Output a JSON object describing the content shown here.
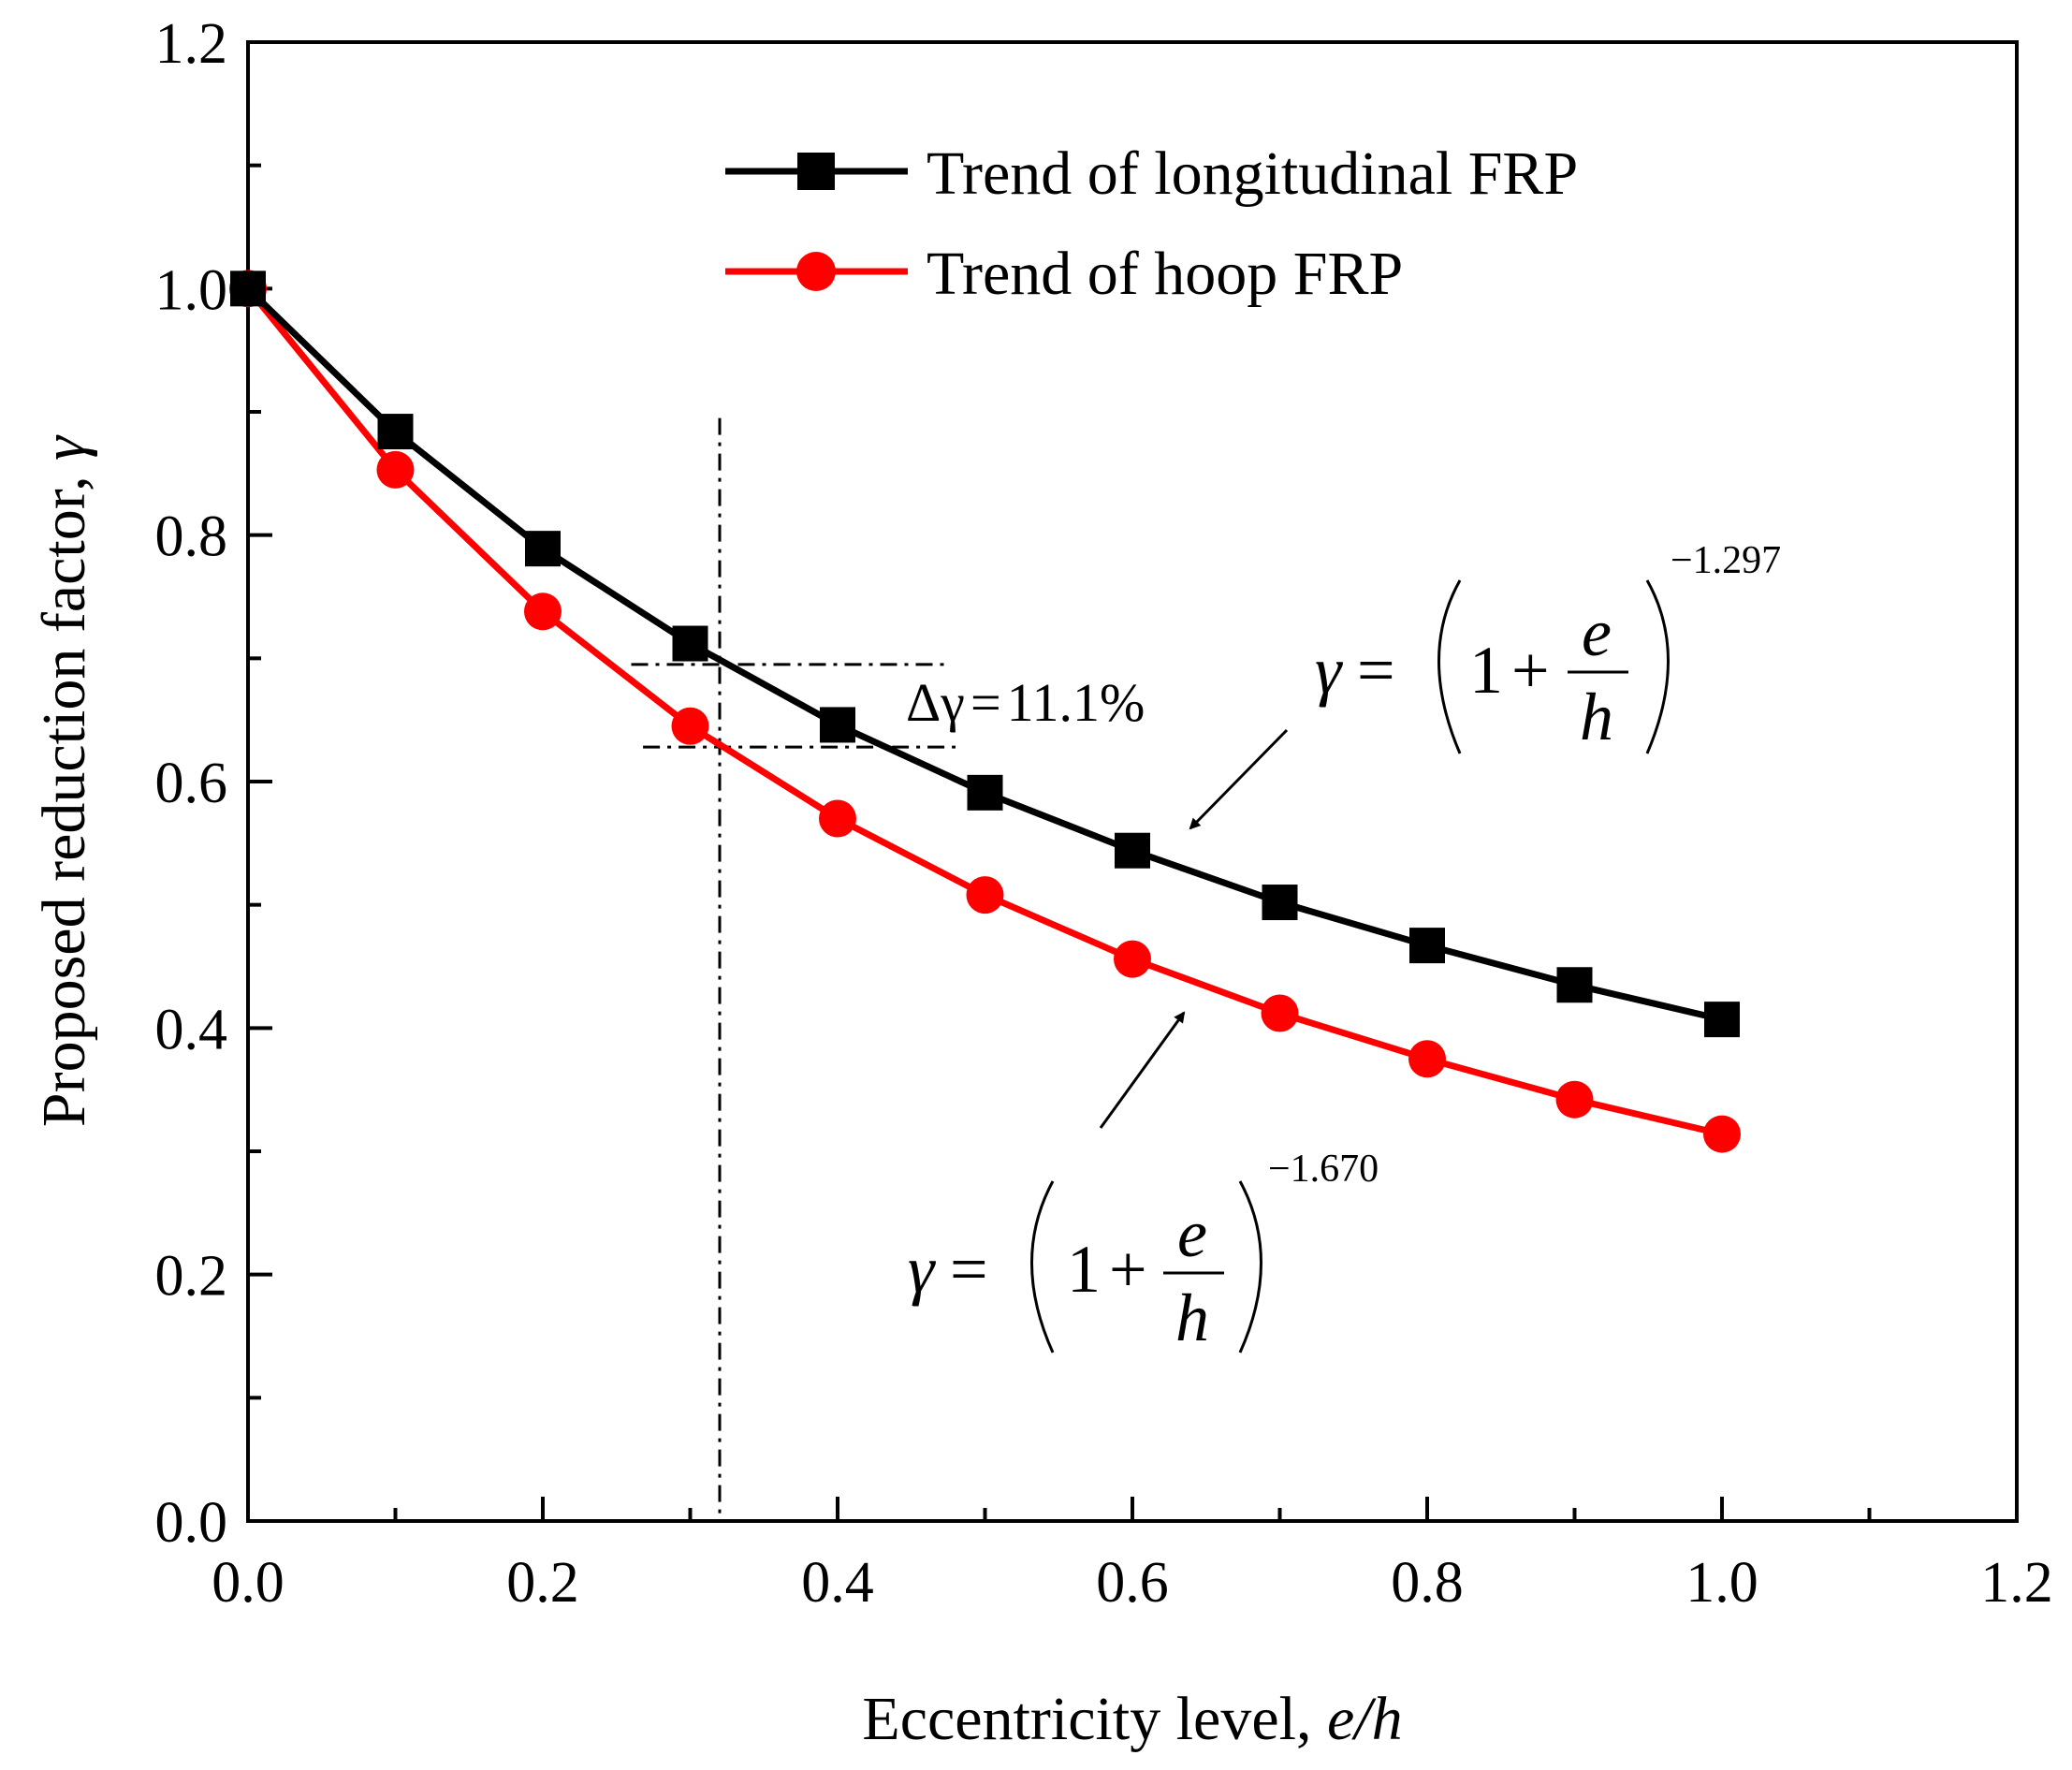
{
  "chart_data": {
    "type": "line",
    "xlabel": "Eccentricity level, ",
    "xlabel_italic": "e/h",
    "ylabel": "Proposed reduction factor, ",
    "ylabel_italic": "γ",
    "xlim": [
      0.0,
      1.2
    ],
    "ylim": [
      0.0,
      1.2
    ],
    "xticks": [
      "0.0",
      "0.2",
      "0.4",
      "0.6",
      "0.8",
      "1.0",
      "1.2"
    ],
    "yticks": [
      "0.0",
      "0.2",
      "0.4",
      "0.6",
      "0.8",
      "1.0",
      "1.2"
    ],
    "x": [
      0.0,
      0.1,
      0.2,
      0.3,
      0.4,
      0.5,
      0.6,
      0.7,
      0.8,
      0.9,
      1.0
    ],
    "series": [
      {
        "name": "Trend of longitudinal FRP",
        "color": "#000000",
        "marker": "square",
        "values": [
          1.0,
          0.884,
          0.789,
          0.712,
          0.646,
          0.591,
          0.544,
          0.502,
          0.467,
          0.435,
          0.407
        ]
      },
      {
        "name": "Trend of hoop FRP",
        "color": "#ff0000",
        "marker": "circle",
        "values": [
          1.0,
          0.853,
          0.738,
          0.645,
          0.57,
          0.508,
          0.456,
          0.412,
          0.375,
          0.342,
          0.314
        ]
      }
    ],
    "reference_line": {
      "x": 0.32
    },
    "delta_lines": [
      0.695,
      0.628
    ],
    "annotations": {
      "delta": {
        "symbol": "Δγ",
        "equals": "=",
        "value": "11.1%"
      },
      "eq_longitudinal": {
        "gamma": "γ",
        "equals": "=",
        "one": "1",
        "plus": "+",
        "num": "e",
        "den": "h",
        "exponent": "−1.297"
      },
      "eq_hoop": {
        "gamma": "γ",
        "equals": "=",
        "one": "1",
        "plus": "+",
        "num": "e",
        "den": "h",
        "exponent": "−1.670"
      }
    }
  }
}
